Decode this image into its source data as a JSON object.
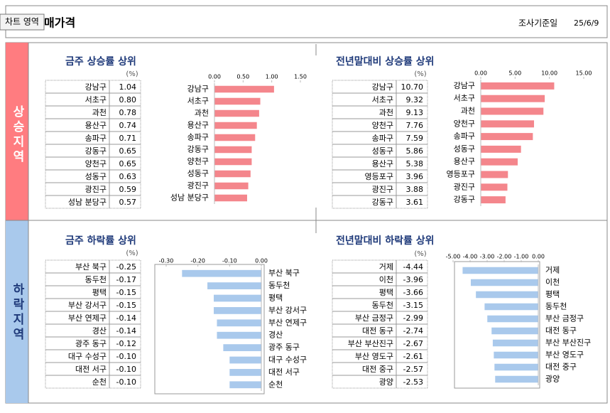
{
  "header": {
    "tooltip": "차트 영역",
    "title": "매가격",
    "date_label": "조사기준일",
    "date": "25/6/9"
  },
  "sections": [
    "상승지역",
    "하락지역"
  ],
  "panels": [
    {
      "title": "금주 상승률 상위",
      "unit": "(%)",
      "table": [
        [
          "강남구",
          "1.04"
        ],
        [
          "서초구",
          "0.80"
        ],
        [
          "과천",
          "0.78"
        ],
        [
          "용산구",
          "0.74"
        ],
        [
          "송파구",
          "0.71"
        ],
        [
          "강동구",
          "0.65"
        ],
        [
          "양천구",
          "0.65"
        ],
        [
          "성동구",
          "0.63"
        ],
        [
          "광진구",
          "0.59"
        ],
        [
          "성남 분당구",
          "0.57"
        ]
      ]
    },
    {
      "title": "전년말대비 상승률 상위",
      "unit": "(%)",
      "table": [
        [
          "강남구",
          "10.70"
        ],
        [
          "서초구",
          "9.32"
        ],
        [
          "과천",
          "9.13"
        ],
        [
          "양천구",
          "7.76"
        ],
        [
          "송파구",
          "7.59"
        ],
        [
          "성동구",
          "5.86"
        ],
        [
          "용산구",
          "5.38"
        ],
        [
          "영등포구",
          "3.96"
        ],
        [
          "광진구",
          "3.88"
        ],
        [
          "강동구",
          "3.61"
        ]
      ]
    },
    {
      "title": "금주 하락률 상위",
      "unit": "(%)",
      "table": [
        [
          "부산 북구",
          "-0.25"
        ],
        [
          "동두천",
          "-0.17"
        ],
        [
          "평택",
          "-0.15"
        ],
        [
          "부산 강서구",
          "-0.15"
        ],
        [
          "부산 연제구",
          "-0.14"
        ],
        [
          "경산",
          "-0.14"
        ],
        [
          "광주 동구",
          "-0.12"
        ],
        [
          "대구 수성구",
          "-0.10"
        ],
        [
          "대전 서구",
          "-0.10"
        ],
        [
          "순천",
          "-0.10"
        ]
      ]
    },
    {
      "title": "전년말대비 하락률 상위",
      "unit": "(%)",
      "table": [
        [
          "거제",
          "-4.44"
        ],
        [
          "이천",
          "-3.96"
        ],
        [
          "평택",
          "-3.66"
        ],
        [
          "동두천",
          "-3.15"
        ],
        [
          "부산 금정구",
          "-2.99"
        ],
        [
          "대전 동구",
          "-2.74"
        ],
        [
          "부산 부산진구",
          "-2.67"
        ],
        [
          "부산 영도구",
          "-2.61"
        ],
        [
          "대전 중구",
          "-2.57"
        ],
        [
          "광양",
          "-2.53"
        ]
      ]
    }
  ],
  "chart_data": [
    {
      "type": "bar",
      "categories": [
        "강남구",
        "서초구",
        "과천",
        "용산구",
        "송파구",
        "강동구",
        "양천구",
        "성동구",
        "광진구",
        "성남 분당구"
      ],
      "values": [
        1.04,
        0.8,
        0.78,
        0.74,
        0.71,
        0.65,
        0.65,
        0.63,
        0.59,
        0.57
      ],
      "color": "#f4868c",
      "xlim": [
        0,
        1.5
      ],
      "xticks": [
        {
          "value": 0,
          "label": "0.00"
        },
        {
          "value": 0.5,
          "label": "0.50"
        },
        {
          "value": 1,
          "label": "1.00"
        },
        {
          "value": 1.5,
          "label": "1.50"
        }
      ]
    },
    {
      "type": "bar",
      "categories": [
        "강남구",
        "서초구",
        "과천",
        "양천구",
        "송파구",
        "성동구",
        "용산구",
        "영등포구",
        "광진구",
        "강동구"
      ],
      "values": [
        10.7,
        9.32,
        9.13,
        7.76,
        7.59,
        5.86,
        5.38,
        3.96,
        3.88,
        3.61
      ],
      "color": "#f4868c",
      "xlim": [
        0,
        15
      ],
      "xticks": [
        {
          "value": 0,
          "label": "0.00"
        },
        {
          "value": 5,
          "label": "5.00"
        },
        {
          "value": 10,
          "label": "10.00"
        },
        {
          "value": 15,
          "label": "15.00"
        }
      ]
    },
    {
      "type": "bar",
      "categories": [
        "부산 북구",
        "동두천",
        "평택",
        "부산 강서구",
        "부산 연제구",
        "경산",
        "광주 동구",
        "대구 수성구",
        "대전 서구",
        "순천"
      ],
      "values": [
        -0.25,
        -0.17,
        -0.15,
        -0.15,
        -0.14,
        -0.14,
        -0.12,
        -0.1,
        -0.1,
        -0.1
      ],
      "color": "#a9c9ec",
      "xlim": [
        -0.3,
        0
      ],
      "xticks": [
        {
          "value": -0.3,
          "label": "-0.30"
        },
        {
          "value": -0.2,
          "label": "-0.20"
        },
        {
          "value": -0.1,
          "label": "-0.10"
        },
        {
          "value": 0,
          "label": "0.00"
        }
      ]
    },
    {
      "type": "bar",
      "categories": [
        "거제",
        "이천",
        "평택",
        "동두천",
        "부산 금정구",
        "대전 동구",
        "부산 부산진구",
        "부산 영도구",
        "대전 중구",
        "광양"
      ],
      "values": [
        -4.44,
        -3.96,
        -3.66,
        -3.15,
        -2.99,
        -2.74,
        -2.67,
        -2.61,
        -2.57,
        -2.53
      ],
      "color": "#a9c9ec",
      "xlim": [
        -5,
        0
      ],
      "xticks": [
        {
          "value": -5,
          "label": "-5.00"
        },
        {
          "value": -4,
          "label": "-4.00"
        },
        {
          "value": -3,
          "label": "-3.00"
        },
        {
          "value": -2,
          "label": "-2.00"
        },
        {
          "value": -1,
          "label": "-1.00"
        },
        {
          "value": 0,
          "label": "0.00"
        }
      ]
    }
  ]
}
